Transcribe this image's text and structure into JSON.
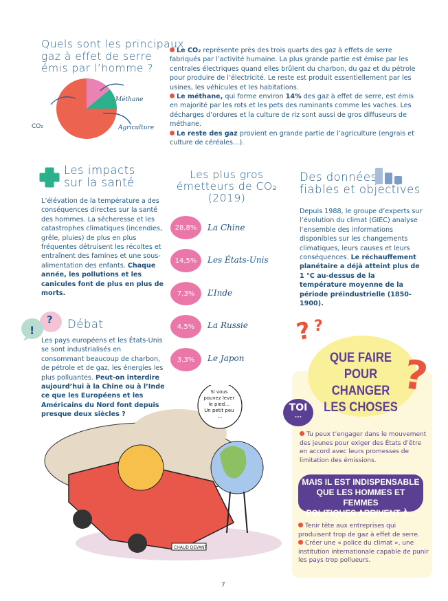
{
  "gases": {
    "title_lines": [
      "Quels sont les principaux",
      "gaz à effet de serre",
      "émis par l’homme ?"
    ],
    "pie_labels": {
      "methane": "Méthane",
      "co2": "CO₂",
      "agriculture": "Agriculture"
    },
    "paragraphs": [
      {
        "bold": "Le CO₂",
        "text": " représente près des trois quarts des gaz à effets de serre fabriqués par l’activité humaine. La plus grande partie est émise par les centrales électriques quand elles brûlent du charbon, du gaz et du pétrole pour produire de l’électricité. Le reste est produit essentiellement par les usines, les véhicules et les habitations."
      },
      {
        "bold": "Le méthane,",
        "text": " qui forme environ ",
        "bold2": "14%",
        "text2": " des gaz à effet de serre, est émis en majorité par les rots et les pets des ruminants comme les vaches. Les décharges d’ordures et la culture de riz sont aussi de gros diffuseurs de méthane."
      },
      {
        "bold": "Le reste des gaz",
        "text": " provient en grande partie de l’agriculture (engrais et culture de céréales…)."
      }
    ]
  },
  "chart_data": {
    "type": "pie",
    "categories": [
      "CO₂",
      "Méthane",
      "Agriculture"
    ],
    "values": [
      75,
      14,
      11
    ],
    "colors": [
      "#ec6450",
      "#ea82b4",
      "#2bb08c"
    ]
  },
  "health": {
    "title_lines": [
      "Les impacts",
      "sur la santé"
    ],
    "text": "L’élévation de la température a des conséquences directes sur la santé des hommes. La sécheresse et les catastrophes climatiques (incendies, grêle, pluies) de plus en plus fréquentes détruisent les récoltes et entraînent des famines et une sous-alimentation des enfants. ",
    "bold": "Chaque année, les pollutions et les canicules font de plus en plus de morts."
  },
  "emitters": {
    "title_lines": [
      "Les plus gros",
      "émetteurs de CO₂",
      "(2019)"
    ],
    "items": [
      {
        "pct": "28,8%",
        "country": "La Chine"
      },
      {
        "pct": "14,5%",
        "country": "Les États-Unis"
      },
      {
        "pct": "7,3%",
        "country": "L’Inde"
      },
      {
        "pct": "4,5%",
        "country": "La Russie"
      },
      {
        "pct": "3,3%",
        "country": "Le Japon"
      }
    ]
  },
  "data_section": {
    "title_lines": [
      "Des données",
      "fiables et objectives"
    ],
    "text": "Depuis 1988, le groupe d’experts sur l’évolution du climat (GIEC) analyse l’ensemble des informations disponibles sur les changements climatiques, leurs causes et leurs conséquences. ",
    "bold": "Le réchauffement planétaire a déjà atteint plus de 1 °C au-dessus de la température moyenne de la période préindustrielle (1850-1900)."
  },
  "debate": {
    "title": "Débat",
    "bubble_marks": [
      "!",
      "?"
    ],
    "text": "Les pays européens et les États-Unis se sont industrialisés en consommant beaucoup de charbon, de pétrole et de gaz, les énergies les plus polluantes. ",
    "bold": "Peut-on interdire aujourd’hui à la Chine ou à l’Inde ce que les Européens et les Américains du Nord font depuis presque deux siècles ?"
  },
  "action": {
    "title_lines": [
      "QUE FAIRE",
      "POUR CHANGER",
      "LES CHOSES"
    ],
    "toi_label": "TOI",
    "toi_dots": "...",
    "toi_text": "Tu peux t’engager dans le mouvement des jeunes pour exiger des États d’être en accord avec leurs promesses de limitation des émissions.",
    "banner_lines": [
      "MAIS IL EST INDISPENSABLE",
      "QUE LES HOMMES ET FEMMES",
      "POLITIQUES ARRIVENT À..."
    ],
    "items": [
      "Tenir tête aux entreprises qui produisent trop de gaz à effet de serre.",
      "Créer une « police du climat », une institution internationale capable de punir les pays trop pollueurs."
    ]
  },
  "illustration": {
    "speech": [
      "Si vous",
      "pouvez lever",
      "le pied…",
      "Un petit peu",
      "…"
    ],
    "plate": "CHAUD DEVANT"
  },
  "page_number": "7",
  "colors": {
    "text": "#1f5a8c",
    "red": "#e8553f",
    "pink": "#ea77a7",
    "green": "#2bb08c",
    "purple": "#5b3f93",
    "yellow": "#fbf09a",
    "cream": "#fdf8dc"
  }
}
